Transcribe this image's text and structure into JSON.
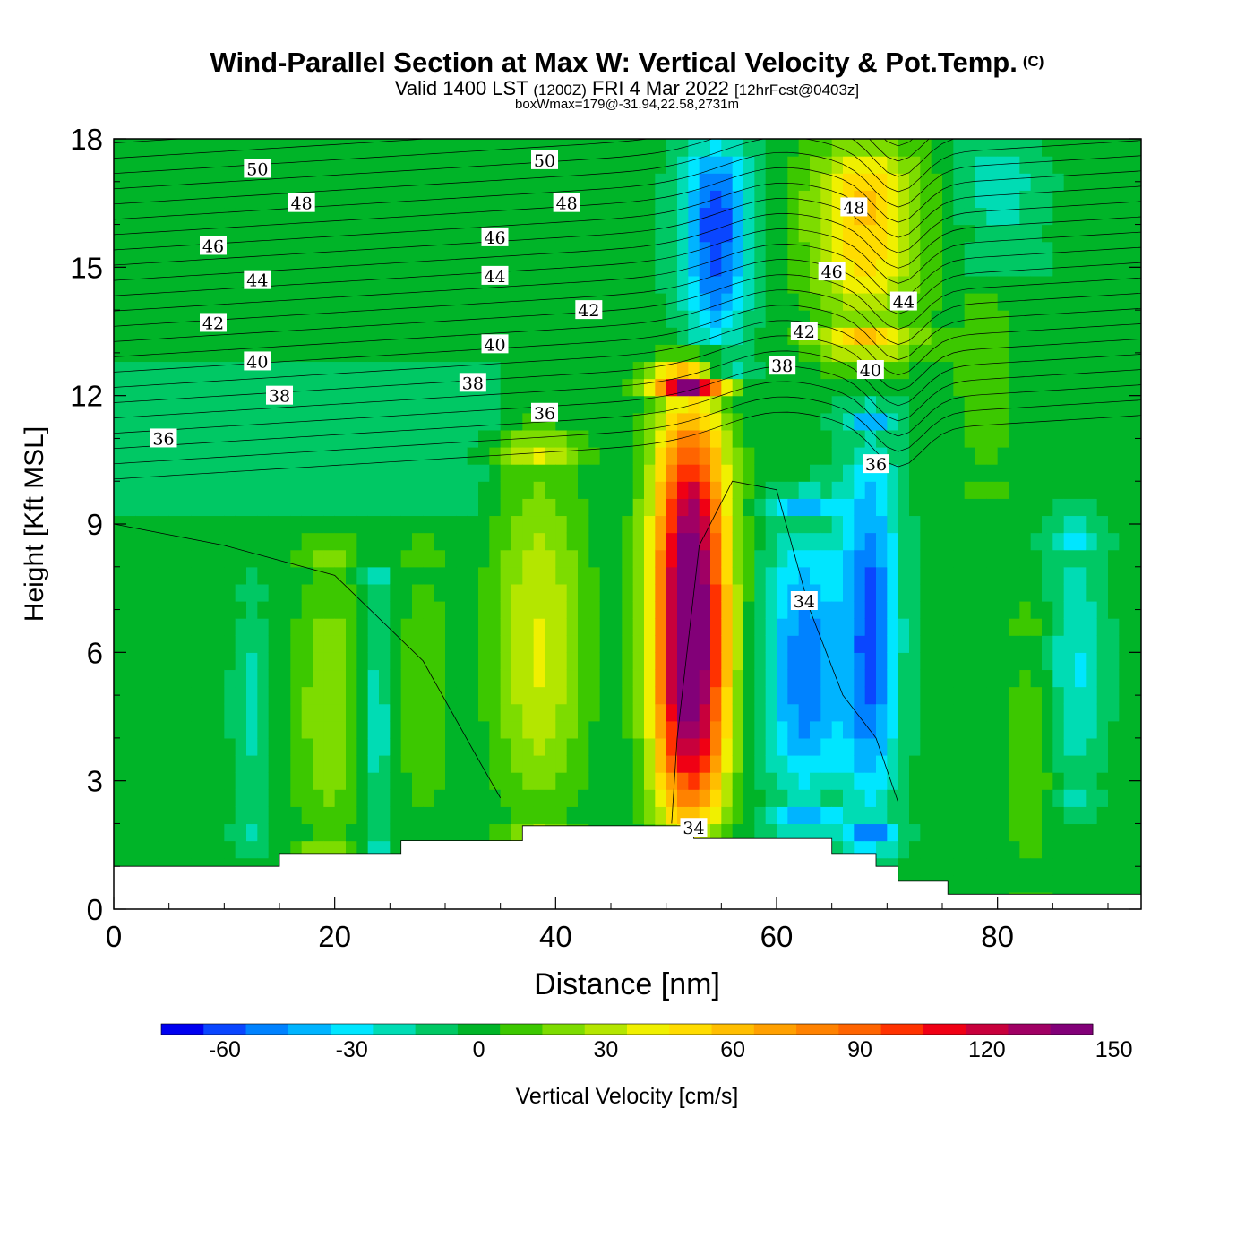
{
  "header": {
    "title": "Wind-Parallel Section at Max W: Vertical Velocity & Pot.Temp.",
    "title_mark": "(C)",
    "sub_valid": "Valid 1400 LST",
    "sub_z": "(1200Z)",
    "sub_date": "FRI 4 Mar 2022",
    "sub_fcst": "[12hrFcst@0403z]",
    "boxinfo": "boxWmax=179@-31.94,22.58,2731m"
  },
  "chart_data": {
    "type": "heatmap",
    "title": "Wind-Parallel Section at Max W: Vertical Velocity & Pot.Temp.",
    "xlabel": "Distance [nm]",
    "ylabel": "Height [Kft MSL]",
    "xlim": [
      0,
      93
    ],
    "ylim": [
      0,
      18
    ],
    "xticks": [
      0,
      20,
      40,
      60,
      80
    ],
    "yticks": [
      0,
      3,
      6,
      9,
      12,
      15,
      18
    ],
    "colorbar": {
      "label": "Vertical Velocity [cm/s]",
      "levels": [
        -70,
        -60,
        -50,
        -40,
        -30,
        -20,
        -10,
        0,
        10,
        20,
        30,
        40,
        50,
        60,
        70,
        80,
        90,
        100,
        110,
        120,
        130,
        140,
        150,
        160
      ],
      "colors": [
        "#0000f0",
        "#0a46ff",
        "#0082ff",
        "#00b4ff",
        "#00e6ff",
        "#00dcb4",
        "#00c864",
        "#00b428",
        "#3cc800",
        "#7ddc00",
        "#b4e600",
        "#f0f000",
        "#ffdc00",
        "#ffbe00",
        "#ffa000",
        "#ff8200",
        "#ff6400",
        "#ff3200",
        "#f00014",
        "#c8003c",
        "#a00064",
        "#820078"
      ],
      "tick_labels": [
        "-60",
        "-30",
        "0",
        "30",
        "60",
        "90",
        "120",
        "150"
      ],
      "tick_values": [
        -60,
        -30,
        0,
        30,
        60,
        90,
        120,
        150
      ]
    },
    "max_updraft": {
      "x": 52,
      "y": 6.5,
      "value": 179
    },
    "updrafts": [
      {
        "x": 52.2,
        "y": 6.3,
        "value": 165,
        "width": 3.3,
        "bottom": 1.8,
        "top": 12
      },
      {
        "x": 38.5,
        "y": 6,
        "value": 38,
        "width": 4,
        "bottom": 2.2,
        "top": 10.5
      },
      {
        "x": 19.5,
        "y": 4.5,
        "value": 26,
        "width": 3.2,
        "bottom": 1.5,
        "top": 8
      },
      {
        "x": 28,
        "y": 5,
        "value": 15,
        "width": 2.5,
        "bottom": 1.8,
        "top": 8
      },
      {
        "x": 68,
        "y": 16.5,
        "value": 60,
        "width": 5,
        "bottom": 13.5,
        "top": 18
      },
      {
        "x": 79,
        "y": 12.5,
        "value": 14,
        "width": 3,
        "bottom": 10,
        "top": 15
      },
      {
        "x": 83,
        "y": 3.5,
        "value": 14,
        "width": 2.5,
        "bottom": 0.5,
        "top": 6.5
      }
    ],
    "downdrafts": [
      {
        "x": 54.5,
        "y": 16,
        "value": -60,
        "width": 3,
        "bottom": 13,
        "top": 18
      },
      {
        "x": 62.5,
        "y": 5.5,
        "value": -50,
        "width": 3.5,
        "bottom": 2.5,
        "top": 9
      },
      {
        "x": 68.5,
        "y": 6.5,
        "value": -55,
        "width": 2.5,
        "bottom": 2,
        "top": 11
      },
      {
        "x": 87,
        "y": 5.5,
        "value": -25,
        "width": 2.5,
        "bottom": 3,
        "top": 8.5
      },
      {
        "x": 23.8,
        "y": 4.3,
        "value": -22,
        "width": 1.5,
        "bottom": 1.5,
        "top": 7.5
      },
      {
        "x": 12.5,
        "y": 5,
        "value": -16,
        "width": 1.6,
        "bottom": 2,
        "top": 7
      },
      {
        "x": 80,
        "y": 17,
        "value": -20,
        "width": 4,
        "bottom": 15.5,
        "top": 18
      }
    ],
    "terrain": [
      [
        0,
        1
      ],
      [
        15,
        1
      ],
      [
        15,
        1.3
      ],
      [
        26,
        1.3
      ],
      [
        26,
        1.6
      ],
      [
        37,
        1.6
      ],
      [
        37,
        1.95
      ],
      [
        52.5,
        1.95
      ],
      [
        52.5,
        1.65
      ],
      [
        65,
        1.65
      ],
      [
        65,
        1.3
      ],
      [
        69,
        1.3
      ],
      [
        69,
        1
      ],
      [
        71,
        1
      ],
      [
        71,
        0.65
      ],
      [
        75.5,
        0.65
      ],
      [
        75.5,
        0.35
      ],
      [
        93,
        0.35
      ]
    ],
    "isentropes": {
      "label": "Potential Temperature",
      "levels": [
        34,
        36,
        38,
        40,
        42,
        44,
        46,
        48,
        50
      ],
      "labels_shown": [
        {
          "text": "50",
          "x": 13,
          "y": 17.3
        },
        {
          "text": "50",
          "x": 39,
          "y": 17.5
        },
        {
          "text": "48",
          "x": 17,
          "y": 16.5
        },
        {
          "text": "48",
          "x": 41,
          "y": 16.5
        },
        {
          "text": "48",
          "x": 67,
          "y": 16.4
        },
        {
          "text": "46",
          "x": 9,
          "y": 15.5
        },
        {
          "text": "46",
          "x": 34.5,
          "y": 15.7
        },
        {
          "text": "46",
          "x": 65,
          "y": 14.9
        },
        {
          "text": "44",
          "x": 13,
          "y": 14.7
        },
        {
          "text": "44",
          "x": 34.5,
          "y": 14.8
        },
        {
          "text": "44",
          "x": 71.5,
          "y": 14.2
        },
        {
          "text": "42",
          "x": 9,
          "y": 13.7
        },
        {
          "text": "42",
          "x": 43,
          "y": 14
        },
        {
          "text": "42",
          "x": 62.5,
          "y": 13.5
        },
        {
          "text": "40",
          "x": 13,
          "y": 12.8
        },
        {
          "text": "40",
          "x": 34.5,
          "y": 13.2
        },
        {
          "text": "40",
          "x": 68.5,
          "y": 12.6
        },
        {
          "text": "38",
          "x": 15,
          "y": 12
        },
        {
          "text": "38",
          "x": 32.5,
          "y": 12.3
        },
        {
          "text": "38",
          "x": 60.5,
          "y": 12.7
        },
        {
          "text": "36",
          "x": 4.5,
          "y": 11
        },
        {
          "text": "36",
          "x": 39,
          "y": 11.6
        },
        {
          "text": "36",
          "x": 69,
          "y": 10.4
        },
        {
          "text": "34",
          "x": 62.5,
          "y": 7.2
        },
        {
          "text": "34",
          "x": 52.5,
          "y": 1.9
        }
      ]
    }
  }
}
